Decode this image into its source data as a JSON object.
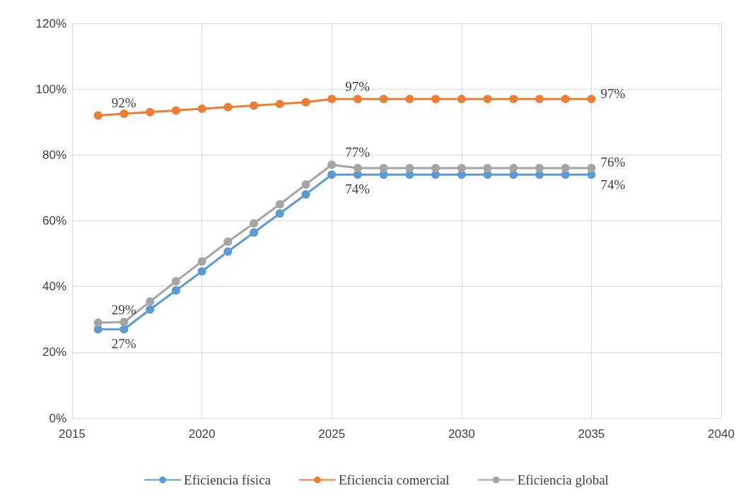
{
  "chart_data": {
    "type": "line",
    "x": [
      2016,
      2017,
      2018,
      2019,
      2020,
      2021,
      2022,
      2023,
      2024,
      2025,
      2026,
      2027,
      2028,
      2029,
      2030,
      2031,
      2032,
      2033,
      2034,
      2035
    ],
    "series": [
      {
        "name": "Eficiencia física",
        "color": "#5b9bd5",
        "values": [
          27,
          27,
          33,
          38.8,
          44.6,
          50.6,
          56.4,
          62.2,
          68,
          74,
          74,
          74,
          74,
          74,
          74,
          74,
          74,
          74,
          74,
          74
        ],
        "value_labels": [
          "27%",
          null,
          null,
          null,
          null,
          null,
          null,
          null,
          null,
          "74%",
          null,
          null,
          null,
          null,
          null,
          null,
          null,
          null,
          null,
          "74%"
        ]
      },
      {
        "name": "Eficiencia comercial",
        "color": "#ed7d31",
        "values": [
          92,
          92.5,
          93,
          93.5,
          94,
          94.5,
          95,
          95.5,
          96,
          97,
          97,
          97,
          97,
          97,
          97,
          97,
          97,
          97,
          97,
          97
        ],
        "value_labels": [
          "92%",
          null,
          null,
          null,
          null,
          null,
          null,
          null,
          null,
          "97%",
          null,
          null,
          null,
          null,
          null,
          null,
          null,
          null,
          null,
          "97%"
        ]
      },
      {
        "name": "Eficiencia global",
        "color": "#a5a5a5",
        "values": [
          29,
          29.2,
          35.4,
          41.6,
          47.6,
          53.6,
          59.2,
          65,
          71,
          77,
          76,
          76,
          76,
          76,
          76,
          76,
          76,
          76,
          76,
          76
        ],
        "value_labels": [
          "29%",
          null,
          null,
          null,
          null,
          null,
          null,
          null,
          null,
          "77%",
          null,
          null,
          null,
          null,
          null,
          null,
          null,
          null,
          null,
          "76%"
        ]
      }
    ],
    "xlim": [
      2015,
      2040
    ],
    "xticks": [
      2015,
      2020,
      2025,
      2030,
      2035,
      2040
    ],
    "ylim": [
      0,
      120
    ],
    "yticks": [
      {
        "value": 0,
        "label": "0%"
      },
      {
        "value": 20,
        "label": "20%"
      },
      {
        "value": 40,
        "label": "40%"
      },
      {
        "value": 60,
        "label": "60%"
      },
      {
        "value": 80,
        "label": "80%"
      },
      {
        "value": 100,
        "label": "100%"
      },
      {
        "value": 120,
        "label": "120%"
      }
    ],
    "grid": true,
    "legend": "bottom",
    "marker": "circle",
    "line_style": "solid"
  }
}
